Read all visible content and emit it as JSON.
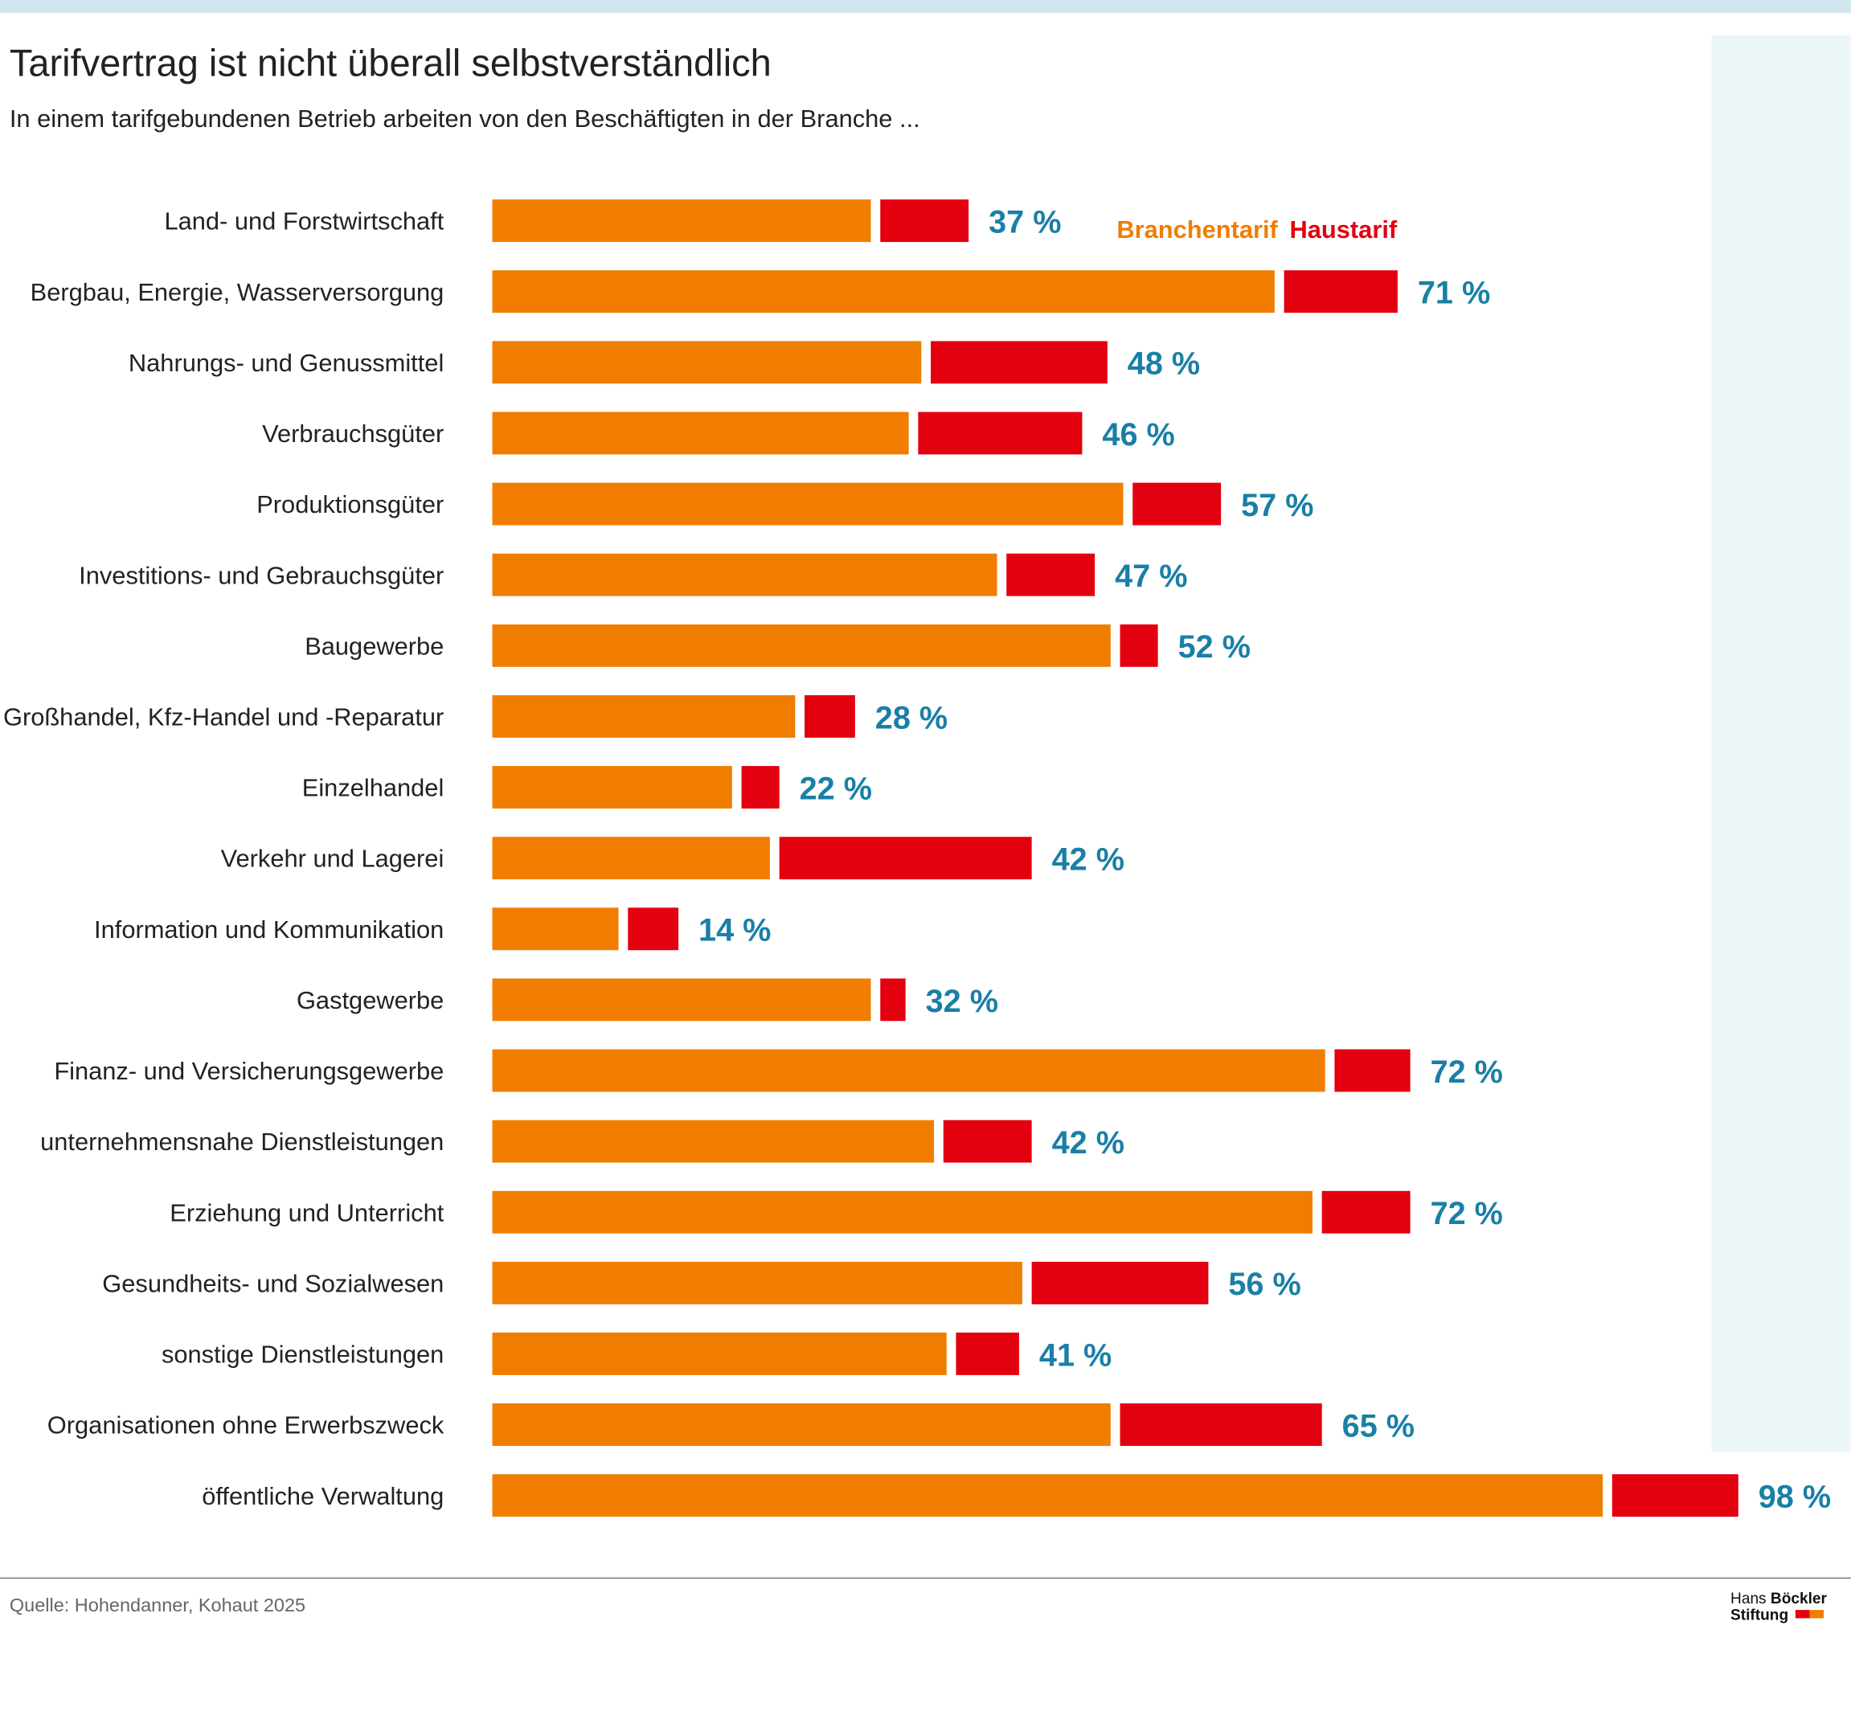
{
  "chart_data": {
    "type": "stacked-bar",
    "title": "Tarifvertrag ist nicht überall selbstverständlich",
    "subtitle": "In einem tarifgebundenen Betrieb arbeiten von den Beschäftigten in der Branche ...",
    "categories": [
      "Land- und Forstwirtschaft",
      "Bergbau, Energie, Wasserversorgung",
      "Nahrungs- und Genussmittel",
      "Verbrauchsgüter",
      "Produktionsgüter",
      "Investitions- und Gebrauchsgüter",
      "Baugewerbe",
      "Großhandel, Kfz-Handel und -Reparatur",
      "Einzelhandel",
      "Verkehr und Lagerei",
      "Information und Kommunikation",
      "Gastgewerbe",
      "Finanz- und Versicherungsgewerbe",
      "unternehmensnahe Dienstleistungen",
      "Erziehung und Unterricht",
      "Gesundheits- und Sozialwesen",
      "sonstige Dienstleistungen",
      "Organisationen ohne Erwerbszweck",
      "öffentliche Verwaltung"
    ],
    "series": [
      {
        "name": "Branchentarif",
        "color": "#f07d00",
        "values": [
          30,
          62,
          34,
          33,
          50,
          40,
          49,
          24,
          19,
          22,
          10,
          30,
          66,
          35,
          65,
          42,
          36,
          49,
          88
        ]
      },
      {
        "name": "Haustarif",
        "color": "#e3000f",
        "values": [
          7,
          9,
          14,
          13,
          7,
          7,
          3,
          4,
          3,
          20,
          4,
          2,
          6,
          7,
          7,
          14,
          5,
          16,
          10
        ]
      }
    ],
    "totals": [
      37,
      71,
      48,
      46,
      57,
      47,
      52,
      28,
      22,
      42,
      14,
      32,
      72,
      42,
      72,
      56,
      41,
      65,
      98
    ],
    "total_labels": [
      "37 %",
      "71 %",
      "48 %",
      "46 %",
      "57 %",
      "47 %",
      "52 %",
      "28 %",
      "22 %",
      "42 %",
      "14 %",
      "32 %",
      "72 %",
      "42 %",
      "72 %",
      "56 %",
      "41 %",
      "65 %",
      "98 %"
    ],
    "total_color": "#1a7fa6",
    "source": "Quelle: Hohendanner, Kohaut 2025",
    "logo": [
      "Hans",
      "Böckler",
      "Stiftung"
    ]
  }
}
